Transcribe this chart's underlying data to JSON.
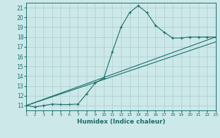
{
  "xlabel": "Humidex (Indice chaleur)",
  "bg_color": "#cce8e8",
  "grid_color": "#aacccc",
  "line_color": "#1a6b6b",
  "xlim": [
    1,
    23
  ],
  "ylim": [
    10.5,
    21.5
  ],
  "xticks": [
    1,
    2,
    3,
    4,
    5,
    6,
    7,
    8,
    9,
    10,
    11,
    12,
    13,
    14,
    15,
    16,
    17,
    18,
    19,
    20,
    21,
    22,
    23
  ],
  "yticks": [
    11,
    12,
    13,
    14,
    15,
    16,
    17,
    18,
    19,
    20,
    21
  ],
  "series1_x": [
    1,
    2,
    3,
    4,
    5,
    6,
    7,
    8,
    9,
    10,
    11,
    12,
    13,
    14,
    15,
    16,
    17,
    18,
    19,
    20,
    21,
    22,
    23
  ],
  "series1_y": [
    11,
    10.85,
    11.0,
    11.15,
    11.1,
    11.1,
    11.15,
    12.2,
    13.3,
    13.8,
    16.5,
    19.0,
    20.5,
    21.2,
    20.5,
    19.2,
    18.5,
    17.9,
    17.9,
    18.0,
    18.0,
    18.0,
    18.0
  ],
  "series2_x": [
    1,
    23
  ],
  "series2_y": [
    11,
    18
  ],
  "series3_x": [
    1,
    23
  ],
  "series3_y": [
    11,
    17.5
  ],
  "marker": "+"
}
